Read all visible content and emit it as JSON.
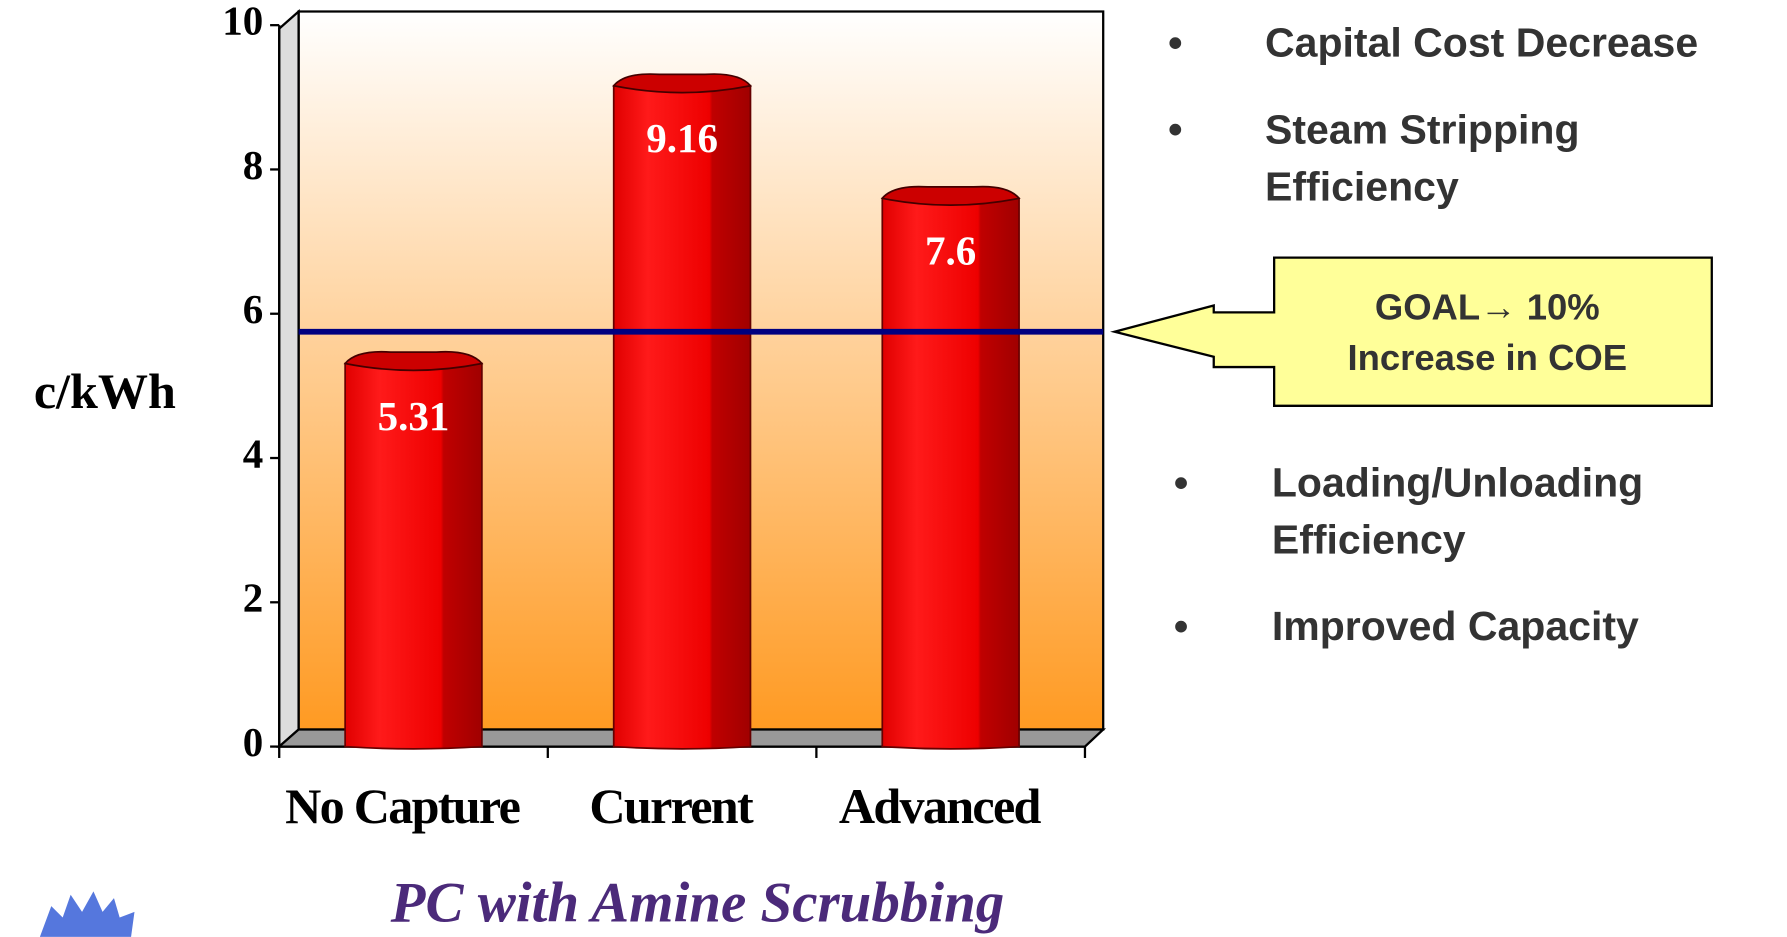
{
  "chart_data": {
    "type": "bar",
    "y_label": "c/kWh",
    "x_label": "PC with Amine Scrubbing",
    "categories": [
      "No Capture",
      "Current",
      "Advanced"
    ],
    "values": [
      5.31,
      9.16,
      7.6
    ],
    "color": "#ff0000",
    "ylim": [
      0,
      10
    ],
    "yticks": [
      0,
      2,
      4,
      6,
      8,
      10
    ],
    "goal_line": 5.75,
    "goal_color": "#000080",
    "callout": [
      "GOAL→ 10%",
      "Increase in COE"
    ],
    "bullets_top": [
      "Capital Cost Decrease",
      "Steam Stripping\nEfficiency"
    ],
    "bullets_bottom": [
      "Loading/Unloading\nEfficiency",
      "Improved Capacity"
    ],
    "bullet_symbol": "•"
  }
}
